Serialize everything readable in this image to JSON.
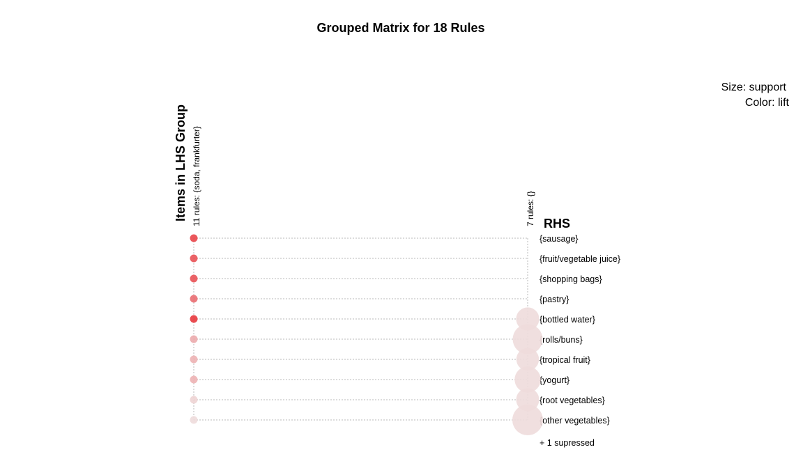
{
  "chart_data": {
    "type": "grouped_matrix",
    "title": "Grouped Matrix for 18 Rules",
    "legend": {
      "size": "Size: support",
      "color": "Color: lift",
      "placement": "top-right"
    },
    "x_axis_title": "Items in LHS Group",
    "y_axis_title": "RHS",
    "groups": [
      {
        "label": "11 rules: {soda, frankfurter}"
      },
      {
        "label": "7 rules: {}"
      }
    ],
    "rhs_items": [
      "{sausage}",
      "{fruit/vegetable juice}",
      "{shopping bags}",
      "{pastry}",
      "{bottled water}",
      "{rolls/buns}",
      "{tropical fruit}",
      "{yogurt}",
      "{root vegetables}",
      "{other vegetables}"
    ],
    "suppressed_note": "+ 1 supressed",
    "color_scale": {
      "low": "#eedbdb",
      "high": "#e8373d"
    },
    "points": [
      {
        "group": 0,
        "rhs": 0,
        "support": 0.003,
        "lift": 3.2
      },
      {
        "group": 0,
        "rhs": 1,
        "support": 0.0027,
        "lift": 3.0
      },
      {
        "group": 0,
        "rhs": 2,
        "support": 0.003,
        "lift": 3.0
      },
      {
        "group": 0,
        "rhs": 3,
        "support": 0.0024,
        "lift": 2.6
      },
      {
        "group": 0,
        "rhs": 4,
        "support": 0.0034,
        "lift": 3.4
      },
      {
        "group": 0,
        "rhs": 5,
        "support": 0.0055,
        "lift": 1.7
      },
      {
        "group": 0,
        "rhs": 6,
        "support": 0.0024,
        "lift": 1.6
      },
      {
        "group": 0,
        "rhs": 7,
        "support": 0.0024,
        "lift": 1.6
      },
      {
        "group": 0,
        "rhs": 8,
        "support": 0.0016,
        "lift": 1.1
      },
      {
        "group": 0,
        "rhs": 9,
        "support": 0.0018,
        "lift": 1.0
      },
      {
        "group": 1,
        "rhs": 4,
        "support": 0.11,
        "lift": 1.0
      },
      {
        "group": 1,
        "rhs": 5,
        "support": 0.184,
        "lift": 1.0
      },
      {
        "group": 1,
        "rhs": 6,
        "support": 0.105,
        "lift": 1.0
      },
      {
        "group": 1,
        "rhs": 7,
        "support": 0.14,
        "lift": 1.0
      },
      {
        "group": 1,
        "rhs": 8,
        "support": 0.109,
        "lift": 1.0
      },
      {
        "group": 1,
        "rhs": 9,
        "support": 0.193,
        "lift": 1.0
      }
    ]
  }
}
